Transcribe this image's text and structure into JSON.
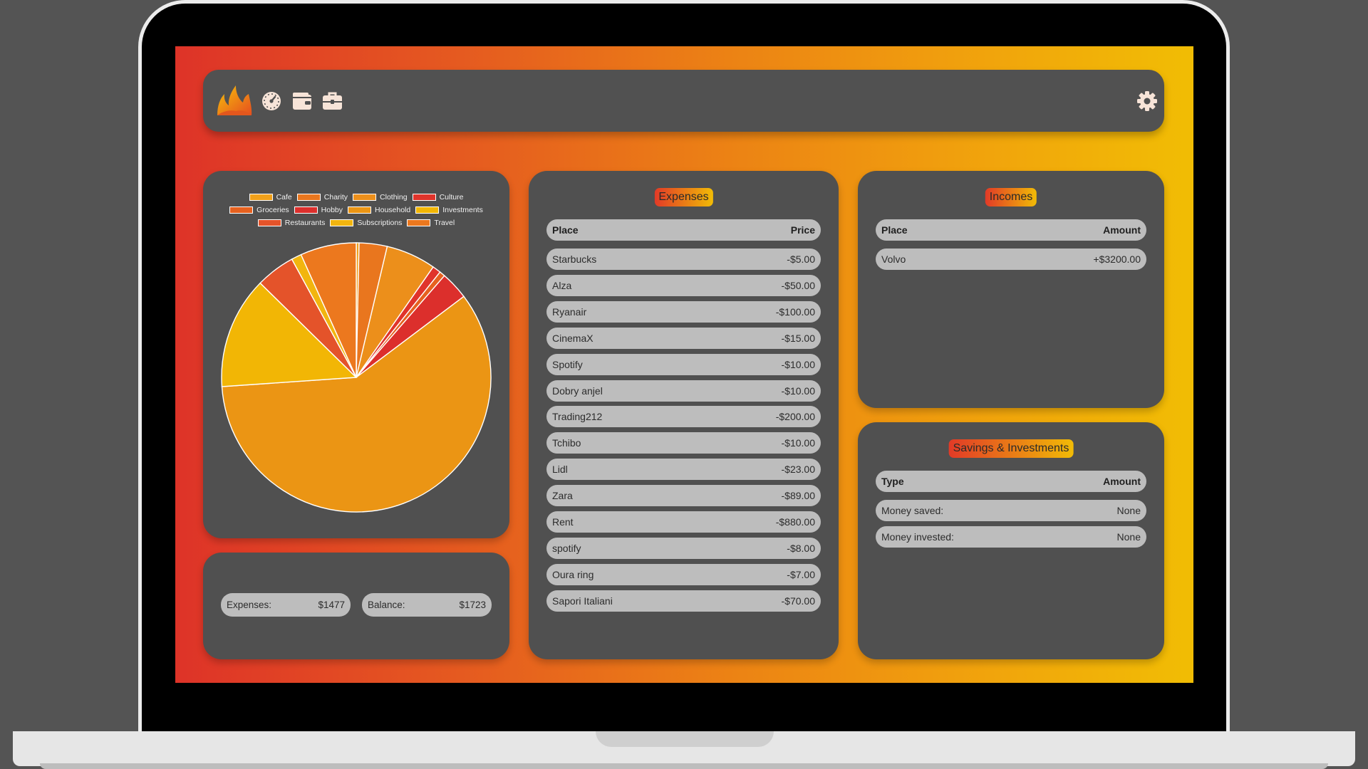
{
  "navbar": {
    "icons": [
      "flame-logo-icon",
      "dashboard-gauge-icon",
      "wallet-icon",
      "briefcase-icon",
      "settings-gear-icon"
    ]
  },
  "colors": {
    "gradient_start": "#de3328",
    "gradient_end": "#f1bd04",
    "panel_bg": "#505050",
    "row_bg": "#bdbdbd"
  },
  "chart_data": {
    "type": "pie",
    "legend": [
      {
        "label": "Cafe",
        "color": "#f0a01a"
      },
      {
        "label": "Charity",
        "color": "#e9761e"
      },
      {
        "label": "Clothing",
        "color": "#ec8f1b"
      },
      {
        "label": "Culture",
        "color": "#e0342b"
      },
      {
        "label": "Groceries",
        "color": "#e6611f"
      },
      {
        "label": "Hobby",
        "color": "#dc2f2c"
      },
      {
        "label": "Household",
        "color": "#eb9514"
      },
      {
        "label": "Investments",
        "color": "#f2b605"
      },
      {
        "label": "Restaurants",
        "color": "#e4532a"
      },
      {
        "label": "Subscriptions",
        "color": "#f2b50f"
      },
      {
        "label": "Travel",
        "color": "#ec781e"
      }
    ],
    "slices": [
      {
        "label": "Cafe",
        "value": 5,
        "color": "#f0a01a"
      },
      {
        "label": "Charity",
        "value": 50,
        "color": "#e9761e"
      },
      {
        "label": "Clothing",
        "value": 89,
        "color": "#ec8f1b"
      },
      {
        "label": "Culture",
        "value": 15,
        "color": "#e0342b"
      },
      {
        "label": "Groceries",
        "value": 10,
        "color": "#e6611f"
      },
      {
        "label": "Hobby",
        "value": 50,
        "color": "#dc2f2c"
      },
      {
        "label": "Household",
        "value": 880,
        "color": "#eb9514"
      },
      {
        "label": "Investments",
        "value": 200,
        "color": "#f2b605"
      },
      {
        "label": "Restaurants",
        "value": 70,
        "color": "#e4532a"
      },
      {
        "label": "Subscriptions",
        "value": 18,
        "color": "#f2b50f"
      },
      {
        "label": "Travel",
        "value": 100,
        "color": "#ec781e"
      }
    ]
  },
  "summary": {
    "expenses_label": "Expenses:",
    "expenses_value": "$1477",
    "balance_label": "Balance:",
    "balance_value": "$1723"
  },
  "expenses": {
    "title": "Expenses",
    "col_place": "Place",
    "col_price": "Price",
    "rows": [
      {
        "place": "Starbucks",
        "price": "-$5.00"
      },
      {
        "place": "Alza",
        "price": "-$50.00"
      },
      {
        "place": "Ryanair",
        "price": "-$100.00"
      },
      {
        "place": "CinemaX",
        "price": "-$15.00"
      },
      {
        "place": "Spotify",
        "price": "-$10.00"
      },
      {
        "place": "Dobry anjel",
        "price": "-$10.00"
      },
      {
        "place": "Trading212",
        "price": "-$200.00"
      },
      {
        "place": "Tchibo",
        "price": "-$10.00"
      },
      {
        "place": "Lidl",
        "price": "-$23.00"
      },
      {
        "place": "Zara",
        "price": "-$89.00"
      },
      {
        "place": "Rent",
        "price": "-$880.00"
      },
      {
        "place": "spotify",
        "price": "-$8.00"
      },
      {
        "place": "Oura ring",
        "price": "-$7.00"
      },
      {
        "place": "Sapori Italiani",
        "price": "-$70.00"
      }
    ]
  },
  "incomes": {
    "title": "Incomes",
    "col_place": "Place",
    "col_amount": "Amount",
    "rows": [
      {
        "place": "Volvo",
        "amount": "+$3200.00"
      }
    ]
  },
  "savings": {
    "title": "Savings & Investments",
    "col_type": "Type",
    "col_amount": "Amount",
    "rows": [
      {
        "type": "Money saved:",
        "amount": "None"
      },
      {
        "type": "Money invested:",
        "amount": "None"
      }
    ]
  }
}
